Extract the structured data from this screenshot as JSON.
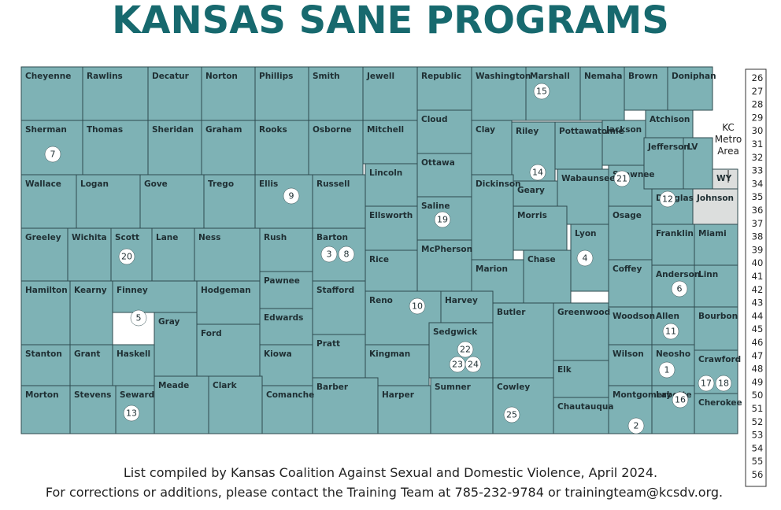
{
  "title": "KANSAS SANE PROGRAMS",
  "counties": [
    "Cheyenne",
    "Rawlins",
    "Decatur",
    "Norton",
    "Phillips",
    "Smith",
    "Jewell",
    "Republic",
    "Washington",
    "Marshall",
    "Nemaha",
    "Brown",
    "Doniphan",
    "Sherman",
    "Thomas",
    "Sheridan",
    "Graham",
    "Rooks",
    "Osborne",
    "Mitchell",
    "Cloud",
    "Clay",
    "Riley",
    "Pottawatomie",
    "Jackson",
    "Atchison",
    "LV",
    "Wallace",
    "Logan",
    "Gove",
    "Trego",
    "Ellis",
    "Russell",
    "Lincoln",
    "Ottawa",
    "Dickinson",
    "Geary",
    "Wabaunsee",
    "Shawnee",
    "Jefferson",
    "Douglas",
    "WY",
    "Johnson",
    "Greeley",
    "Wichita",
    "Scott",
    "Lane",
    "Ness",
    "Rush",
    "Barton",
    "Ellsworth",
    "Saline",
    "Morris",
    "Lyon",
    "Osage",
    "Franklin",
    "Miami",
    "Hamilton",
    "Kearny",
    "Finney",
    "Hodgeman",
    "Pawnee",
    "Stafford",
    "Rice",
    "McPherson",
    "Marion",
    "Chase",
    "Coffey",
    "Anderson",
    "Linn",
    "Gray",
    "Ford",
    "Edwards",
    "Reno",
    "Harvey",
    "Butler",
    "Greenwood",
    "Woodson",
    "Allen",
    "Bourbon",
    "Stanton",
    "Grant",
    "Haskell",
    "Kiowa",
    "Pratt",
    "Kingman",
    "Sedgwick",
    "Elk",
    "Wilson",
    "Neosho",
    "Crawford",
    "Morton",
    "Stevens",
    "Seward",
    "Meade",
    "Clark",
    "Comanche",
    "Barber",
    "Harper",
    "Sumner",
    "Cowley",
    "Chautauqua",
    "Montgomery",
    "Labette",
    "Cherokee"
  ],
  "markers": [
    7,
    20,
    5,
    13,
    9,
    3,
    8,
    19,
    10,
    22,
    23,
    24,
    25,
    15,
    14,
    21,
    12,
    4,
    6,
    11,
    1,
    16,
    17,
    18,
    2
  ],
  "kc_label": [
    "KC",
    "Metro",
    "Area"
  ],
  "side_list": [
    26,
    27,
    28,
    29,
    30,
    31,
    32,
    33,
    34,
    35,
    36,
    37,
    38,
    39,
    40,
    41,
    42,
    43,
    44,
    45,
    46,
    47,
    48,
    49,
    50,
    51,
    52,
    53,
    54,
    55,
    56
  ],
  "footer": [
    "List compiled by Kansas Coalition Against Sexual and Domestic Violence, April 2024.",
    "For corrections or additions, please contact the Training Team at 785-232-9784 or trainingteam@kcsdv.org."
  ]
}
